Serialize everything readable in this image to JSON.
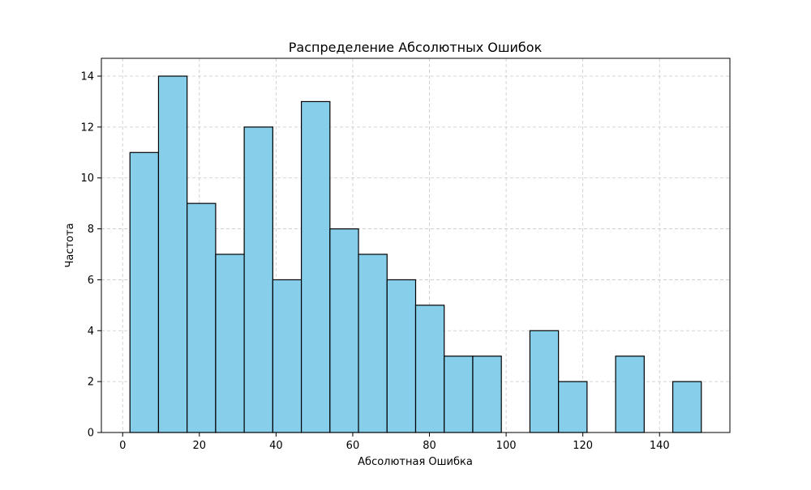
{
  "chart_data": {
    "type": "bar",
    "title": "Распределение Абсолютных Ошибок",
    "xlabel": "Абсолютная Ошибка",
    "ylabel": "Частота",
    "bin_edges": [
      1.9,
      9.35,
      16.8,
      24.25,
      31.7,
      39.15,
      46.6,
      54.05,
      61.5,
      68.95,
      76.4,
      83.85,
      91.3,
      98.75,
      106.2,
      113.65,
      121.1,
      128.55,
      136.0,
      143.45,
      150.9
    ],
    "values": [
      11,
      14,
      9,
      7,
      12,
      6,
      13,
      8,
      7,
      6,
      5,
      3,
      3,
      0,
      4,
      2,
      0,
      3,
      0,
      2
    ],
    "xlim": [
      -5.55,
      158.35
    ],
    "ylim": [
      0,
      14.7
    ],
    "xticks": [
      0,
      20,
      40,
      60,
      80,
      100,
      120,
      140
    ],
    "yticks": [
      0,
      2,
      4,
      6,
      8,
      10,
      12,
      14
    ],
    "grid": true,
    "colors": {
      "bar_fill": "#87ceeb",
      "bar_edge": "#000000",
      "grid": "#c8c8c8",
      "axis": "#000000"
    }
  }
}
